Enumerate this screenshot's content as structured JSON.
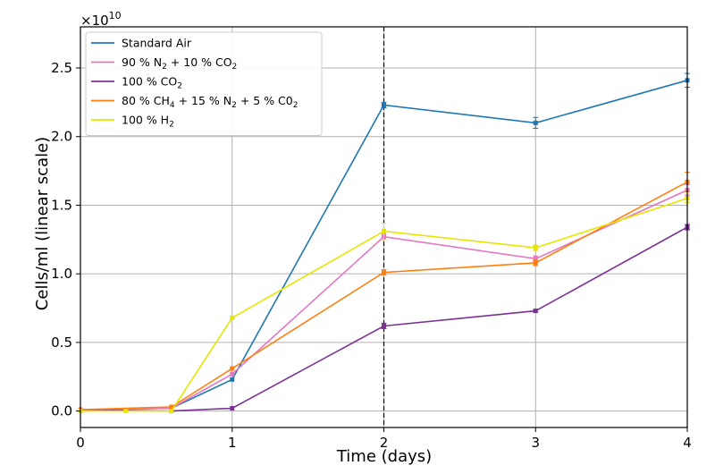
{
  "chart_data": {
    "type": "line",
    "title": "",
    "xlabel": "Time (days)",
    "ylabel": "Cells/ml (linear scale)",
    "y_multiplier_label": "×10",
    "y_multiplier_exponent": "10",
    "xlim": [
      0,
      4
    ],
    "ylim": [
      -0.12,
      2.8
    ],
    "x_ticks": [
      0,
      1,
      2,
      3,
      4
    ],
    "x_tick_labels": [
      "0",
      "1",
      "2",
      "3",
      "4"
    ],
    "y_ticks": [
      0.0,
      0.5,
      1.0,
      1.5,
      2.0,
      2.5
    ],
    "y_tick_labels": [
      "0.0",
      "0.5",
      "1.0",
      "1.5",
      "2.0",
      "2.5"
    ],
    "grid": true,
    "vertical_marker_x": 2,
    "legend_position": "top-left",
    "series": [
      {
        "name": "Standard Air",
        "legend": [
          {
            "t": "Standard Air"
          }
        ],
        "color": "#1f77b4",
        "x": [
          0,
          0.6,
          1,
          2,
          3,
          4
        ],
        "y": [
          0.01,
          0.02,
          0.23,
          2.23,
          2.1,
          2.41
        ],
        "err": [
          0,
          0,
          0,
          0.02,
          0.04,
          0.05
        ]
      },
      {
        "name": "90 % N2 + 10 % CO2",
        "legend": [
          {
            "t": "90 % N"
          },
          {
            "t": "2",
            "sub": true
          },
          {
            "t": " + 10 % CO"
          },
          {
            "t": "2",
            "sub": true
          }
        ],
        "color": "#e377c2",
        "x": [
          0,
          0.6,
          1,
          2,
          3,
          4
        ],
        "y": [
          0.01,
          0.02,
          0.27,
          1.27,
          1.11,
          1.61
        ],
        "err": [
          0,
          0,
          0,
          0.02,
          0.02,
          0.04
        ]
      },
      {
        "name": "100 % CO2",
        "legend": [
          {
            "t": "100 % CO"
          },
          {
            "t": "2",
            "sub": true
          }
        ],
        "color": "#7b3294",
        "x": [
          0,
          0.6,
          1,
          2,
          3,
          4
        ],
        "y": [
          0.01,
          0.0,
          0.02,
          0.62,
          0.73,
          1.34
        ],
        "err": [
          0,
          0,
          0,
          0.02,
          0.01,
          0.02
        ]
      },
      {
        "name": "80 % CH4 + 15 % N2 + 5 % C02",
        "legend": [
          {
            "t": "80 % CH"
          },
          {
            "t": "4",
            "sub": true
          },
          {
            "t": " + 15 % N"
          },
          {
            "t": "2",
            "sub": true
          },
          {
            "t": " + 5 % C0"
          },
          {
            "t": "2",
            "sub": true
          }
        ],
        "color": "#ff7f0e",
        "x": [
          0,
          0.6,
          1,
          2,
          3,
          4
        ],
        "y": [
          0.01,
          0.03,
          0.31,
          1.01,
          1.08,
          1.67
        ],
        "err": [
          0,
          0,
          0,
          0.02,
          0.02,
          0.07
        ]
      },
      {
        "name": "100 % H2",
        "legend": [
          {
            "t": "100 % H"
          },
          {
            "t": "2",
            "sub": true
          }
        ],
        "color": "#e6e600",
        "x": [
          0,
          0.3,
          0.6,
          1,
          2,
          3,
          4
        ],
        "y": [
          0.0,
          0.0,
          0.0,
          0.68,
          1.31,
          1.19,
          1.55
        ],
        "err": [
          0,
          0,
          0,
          0,
          0.06,
          0.02,
          0.03
        ]
      }
    ]
  }
}
